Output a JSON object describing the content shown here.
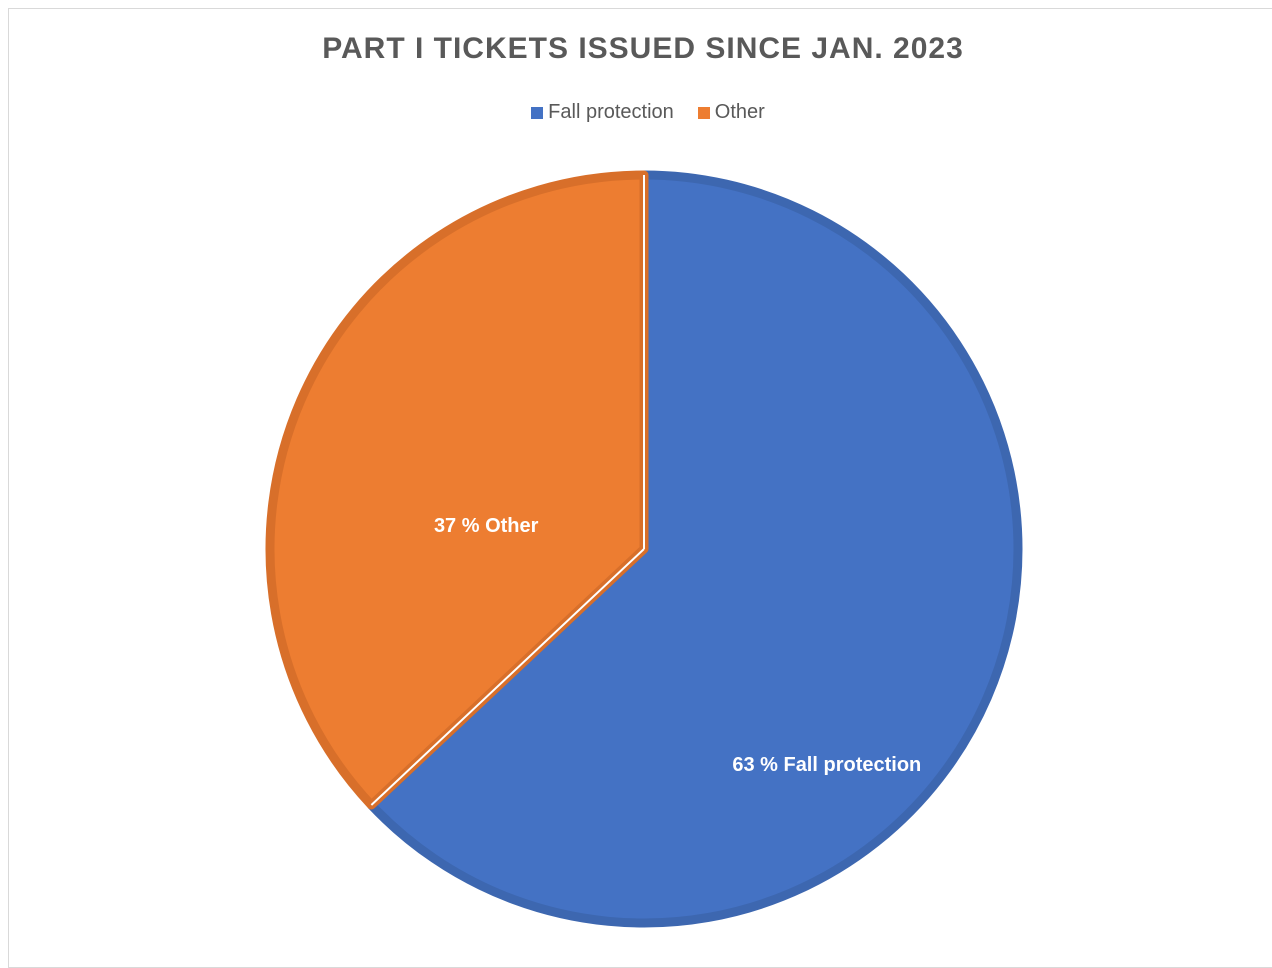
{
  "chart_data": {
    "type": "pie",
    "title": "PART I TICKETS ISSUED SINCE JAN. 2023",
    "legend_position": "top",
    "slices": [
      {
        "name": "Fall protection",
        "value": 63,
        "label": "63 % Fall protection",
        "color": "#4472c4",
        "edge": "#3d67b0"
      },
      {
        "name": "Other",
        "value": 37,
        "label": "37 % Other",
        "color": "#ed7d31",
        "edge": "#d86f2a"
      }
    ]
  }
}
